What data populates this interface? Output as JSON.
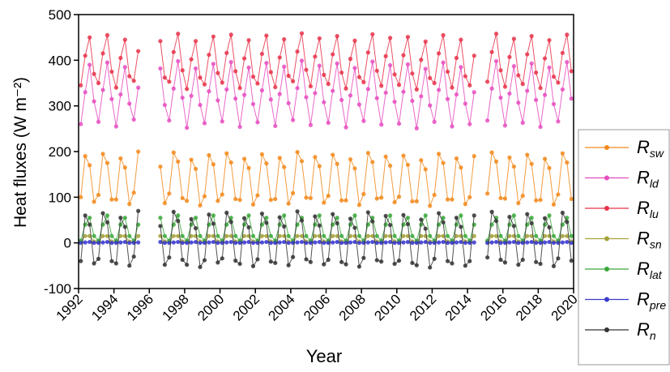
{
  "chart_data": {
    "type": "line",
    "x_label": "Year",
    "y_label": "Heat fluxes  (W m⁻²)",
    "xlim": [
      1992,
      2020
    ],
    "xticks": [
      1992,
      1994,
      1996,
      1998,
      2000,
      2002,
      2004,
      2006,
      2008,
      2010,
      2012,
      2014,
      2016,
      2018,
      2020
    ],
    "ylim": [
      -100,
      500
    ],
    "yticks": [
      -100,
      0,
      100,
      200,
      300,
      400,
      500
    ],
    "legend": "right",
    "x": [
      1992.125,
      1992.375,
      1992.625,
      1992.875,
      1993.125,
      1993.375,
      1993.625,
      1993.875,
      1994.125,
      1994.375,
      1994.625,
      1994.875,
      1995.125,
      1995.375,
      1995.625,
      1995.875,
      1996.125,
      1996.375,
      1996.625,
      1996.875,
      1997.125,
      1997.375,
      1997.625,
      1997.875,
      1998.125,
      1998.375,
      1998.625,
      1998.875,
      1999.125,
      1999.375,
      1999.625,
      1999.875,
      2000.125,
      2000.375,
      2000.625,
      2000.875,
      2001.125,
      2001.375,
      2001.625,
      2001.875,
      2002.125,
      2002.375,
      2002.625,
      2002.875,
      2003.125,
      2003.375,
      2003.625,
      2003.875,
      2004.125,
      2004.375,
      2004.625,
      2004.875,
      2005.125,
      2005.375,
      2005.625,
      2005.875,
      2006.125,
      2006.375,
      2006.625,
      2006.875,
      2007.125,
      2007.375,
      2007.625,
      2007.875,
      2008.125,
      2008.375,
      2008.625,
      2008.875,
      2009.125,
      2009.375,
      2009.625,
      2009.875,
      2010.125,
      2010.375,
      2010.625,
      2010.875,
      2011.125,
      2011.375,
      2011.625,
      2011.875,
      2012.125,
      2012.375,
      2012.625,
      2012.875,
      2013.125,
      2013.375,
      2013.625,
      2013.875,
      2014.125,
      2014.375,
      2014.625,
      2014.875,
      2015.125,
      2015.375,
      2015.625,
      2015.875,
      2016.125,
      2016.375,
      2016.625,
      2016.875,
      2017.125,
      2017.375,
      2017.625,
      2017.875,
      2018.125,
      2018.375,
      2018.625,
      2018.875,
      2019.125,
      2019.375,
      2019.625,
      2019.875
    ],
    "series": [
      {
        "name": "Rsw",
        "color": "#f28a1c",
        "values": [
          100,
          190,
          170,
          90,
          105,
          195,
          175,
          95,
          95,
          185,
          165,
          85,
          110,
          200,
          null,
          null,
          null,
          null,
          167,
          87,
          108,
          198,
          178,
          98,
          92,
          182,
          162,
          82,
          102,
          192,
          172,
          92,
          106,
          196,
          176,
          96,
          94,
          184,
          164,
          84,
          104,
          194,
          174,
          94,
          96,
          186,
          166,
          86,
          109,
          199,
          179,
          99,
          98,
          188,
          168,
          88,
          103,
          193,
          173,
          93,
          93,
          183,
          163,
          83,
          107,
          197,
          177,
          97,
          99,
          189,
          169,
          89,
          101,
          191,
          171,
          91,
          91,
          181,
          161,
          81,
          105,
          195,
          175,
          95,
          95,
          185,
          165,
          85,
          100,
          190,
          null,
          null,
          108,
          198,
          178,
          98,
          97,
          187,
          167,
          87,
          103,
          193,
          173,
          93,
          94,
          184,
          164,
          84,
          106,
          196,
          176,
          96
        ]
      },
      {
        "name": "Rld",
        "color": "#e64cc0",
        "values": [
          260,
          330,
          390,
          310,
          265,
          335,
          395,
          315,
          255,
          325,
          385,
          305,
          270,
          340,
          null,
          null,
          null,
          null,
          382,
          302,
          268,
          338,
          398,
          318,
          252,
          322,
          382,
          302,
          262,
          332,
          392,
          312,
          266,
          336,
          396,
          316,
          254,
          324,
          384,
          304,
          264,
          334,
          394,
          314,
          256,
          326,
          386,
          306,
          269,
          339,
          399,
          319,
          258,
          328,
          388,
          308,
          263,
          333,
          393,
          313,
          253,
          323,
          383,
          303,
          267,
          337,
          397,
          317,
          259,
          329,
          389,
          309,
          261,
          331,
          391,
          311,
          251,
          321,
          381,
          301,
          265,
          335,
          395,
          315,
          255,
          325,
          385,
          305,
          260,
          330,
          null,
          null,
          268,
          338,
          398,
          318,
          257,
          327,
          387,
          307,
          263,
          333,
          393,
          313,
          254,
          324,
          384,
          304,
          266,
          336,
          396,
          316
        ]
      },
      {
        "name": "Rlu",
        "color": "#e8334a",
        "values": [
          345,
          410,
          450,
          370,
          350,
          415,
          455,
          375,
          340,
          405,
          445,
          365,
          355,
          420,
          null,
          null,
          null,
          null,
          442,
          362,
          353,
          418,
          458,
          378,
          337,
          402,
          442,
          362,
          347,
          412,
          452,
          372,
          351,
          416,
          456,
          376,
          339,
          404,
          444,
          364,
          349,
          414,
          454,
          374,
          341,
          406,
          446,
          366,
          354,
          419,
          459,
          379,
          343,
          408,
          448,
          368,
          348,
          413,
          453,
          373,
          338,
          403,
          443,
          363,
          352,
          417,
          457,
          377,
          344,
          409,
          449,
          369,
          346,
          411,
          451,
          371,
          336,
          401,
          441,
          361,
          350,
          415,
          455,
          375,
          340,
          405,
          445,
          365,
          345,
          410,
          null,
          null,
          353,
          418,
          458,
          378,
          342,
          407,
          447,
          367,
          348,
          413,
          453,
          373,
          339,
          404,
          444,
          364,
          351,
          416,
          456,
          376
        ]
      },
      {
        "name": "Rsn",
        "color": "#a4a23a",
        "values": [
          2,
          15,
          15,
          3,
          2,
          15,
          15,
          3,
          2,
          15,
          15,
          3,
          2,
          15,
          null,
          null,
          null,
          null,
          15,
          3,
          2,
          15,
          15,
          3,
          2,
          15,
          15,
          3,
          2,
          15,
          15,
          3,
          2,
          15,
          15,
          3,
          2,
          15,
          15,
          3,
          2,
          15,
          15,
          3,
          2,
          15,
          15,
          3,
          2,
          15,
          15,
          3,
          2,
          15,
          15,
          3,
          2,
          15,
          15,
          3,
          2,
          15,
          15,
          3,
          2,
          15,
          15,
          3,
          2,
          15,
          15,
          3,
          2,
          15,
          15,
          3,
          2,
          15,
          15,
          3,
          2,
          15,
          15,
          3,
          2,
          15,
          15,
          3,
          2,
          15,
          null,
          null,
          2,
          15,
          15,
          3,
          2,
          15,
          15,
          3,
          2,
          15,
          15,
          3,
          2,
          15,
          15,
          3,
          2,
          15,
          15,
          3
        ]
      },
      {
        "name": "Rlat",
        "color": "#3aa83a",
        "values": [
          5,
          40,
          55,
          15,
          5,
          40,
          60,
          15,
          5,
          40,
          55,
          15,
          5,
          40,
          null,
          null,
          null,
          null,
          55,
          15,
          5,
          40,
          60,
          15,
          5,
          40,
          55,
          15,
          5,
          40,
          60,
          15,
          5,
          40,
          55,
          15,
          5,
          40,
          60,
          15,
          5,
          40,
          55,
          15,
          5,
          40,
          60,
          15,
          5,
          40,
          55,
          15,
          5,
          40,
          60,
          15,
          5,
          40,
          55,
          15,
          5,
          40,
          60,
          15,
          5,
          40,
          55,
          15,
          5,
          40,
          60,
          15,
          5,
          40,
          55,
          15,
          5,
          40,
          60,
          15,
          5,
          40,
          55,
          15,
          5,
          40,
          60,
          15,
          5,
          40,
          null,
          null,
          5,
          40,
          55,
          15,
          5,
          40,
          60,
          15,
          5,
          40,
          55,
          15,
          5,
          40,
          60,
          15,
          5,
          40,
          55,
          15
        ]
      },
      {
        "name": "Rpre",
        "color": "#3a3ad0",
        "values": [
          0,
          1,
          2,
          0,
          0,
          1,
          2,
          0,
          0,
          1,
          2,
          0,
          0,
          1,
          null,
          null,
          null,
          null,
          2,
          0,
          0,
          1,
          2,
          0,
          0,
          1,
          2,
          0,
          0,
          1,
          2,
          0,
          0,
          1,
          2,
          0,
          0,
          1,
          2,
          0,
          0,
          1,
          2,
          0,
          0,
          1,
          2,
          0,
          0,
          1,
          2,
          0,
          0,
          1,
          2,
          0,
          0,
          1,
          2,
          0,
          0,
          1,
          2,
          0,
          0,
          1,
          2,
          0,
          0,
          1,
          2,
          0,
          0,
          1,
          2,
          0,
          0,
          1,
          2,
          0,
          0,
          1,
          2,
          0,
          0,
          1,
          2,
          0,
          0,
          1,
          null,
          null,
          0,
          1,
          2,
          0,
          0,
          1,
          2,
          0,
          0,
          1,
          2,
          0,
          0,
          1,
          2,
          0,
          0,
          1,
          2,
          0
        ]
      },
      {
        "name": "Rn",
        "color": "#333333",
        "values": [
          -40,
          60,
          40,
          -45,
          -35,
          65,
          45,
          -40,
          -45,
          55,
          35,
          -50,
          -30,
          70,
          null,
          null,
          null,
          null,
          37,
          -48,
          -32,
          68,
          48,
          -37,
          -48,
          52,
          32,
          -53,
          -38,
          62,
          42,
          -43,
          -34,
          66,
          46,
          -39,
          -46,
          54,
          34,
          -51,
          -36,
          64,
          44,
          -41,
          -44,
          56,
          36,
          -49,
          -31,
          69,
          49,
          -36,
          -42,
          58,
          38,
          -47,
          -37,
          63,
          43,
          -42,
          -47,
          53,
          33,
          -52,
          -33,
          67,
          47,
          -38,
          -41,
          59,
          39,
          -46,
          -39,
          61,
          41,
          -44,
          -49,
          51,
          31,
          -54,
          -35,
          65,
          45,
          -40,
          -45,
          55,
          35,
          -50,
          -40,
          60,
          null,
          null,
          -32,
          68,
          48,
          -37,
          -43,
          57,
          37,
          -48,
          -37,
          63,
          43,
          -42,
          -46,
          54,
          34,
          -51,
          -34,
          66,
          46,
          -39
        ]
      }
    ]
  }
}
